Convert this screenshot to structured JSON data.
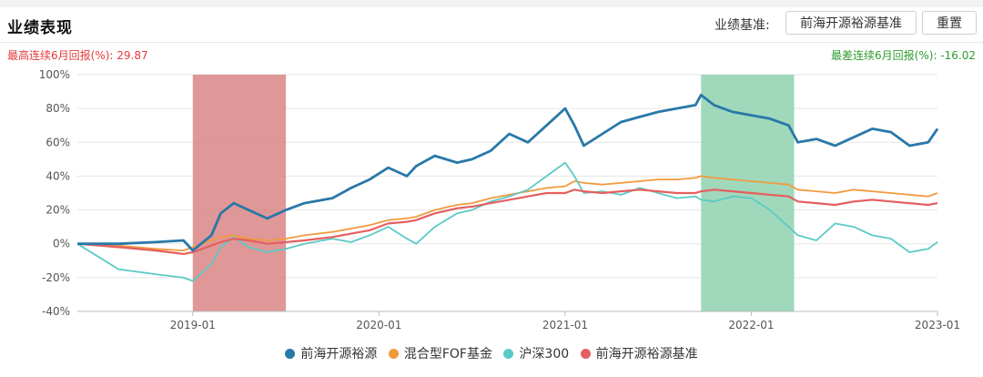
{
  "header": {
    "title": "业绩表现",
    "benchmark_label": "业绩基准:",
    "benchmark_button": "前海开源裕源基准",
    "reset_button": "重置"
  },
  "stats": {
    "max_label": "最高连续6月回报(%):  29.87",
    "min_label": "最差连续6月回报(%):  -16.02",
    "max_color": "#e4393c",
    "min_color": "#2e9b2e"
  },
  "chart_data": {
    "type": "line",
    "x_ticks": [
      "2019-01",
      "2020-01",
      "2021-01",
      "2022-01",
      "2023-01"
    ],
    "y_ticks": [
      "100%",
      "80%",
      "60%",
      "40%",
      "20%",
      "0%",
      "-20%",
      "-40%"
    ],
    "ylim": [
      -40,
      100
    ],
    "xlim": [
      2018.38,
      2023.0
    ],
    "grid": true,
    "legend_position": "bottom",
    "highlights": [
      {
        "name": "best_6m",
        "start": 2019.0,
        "end": 2019.5,
        "color": "#d98585"
      },
      {
        "name": "worst_6m",
        "start": 2021.73,
        "end": 2022.23,
        "color": "#8fd1b0"
      }
    ],
    "x": [
      2018.38,
      2018.6,
      2018.8,
      2018.95,
      2019.0,
      2019.1,
      2019.15,
      2019.22,
      2019.3,
      2019.4,
      2019.5,
      2019.6,
      2019.75,
      2019.85,
      2019.95,
      2020.05,
      2020.15,
      2020.2,
      2020.3,
      2020.42,
      2020.5,
      2020.6,
      2020.7,
      2020.8,
      2020.9,
      2021.0,
      2021.05,
      2021.1,
      2021.2,
      2021.3,
      2021.4,
      2021.5,
      2021.6,
      2021.7,
      2021.73,
      2021.8,
      2021.9,
      2022.0,
      2022.1,
      2022.2,
      2022.25,
      2022.35,
      2022.45,
      2022.55,
      2022.65,
      2022.75,
      2022.85,
      2022.95,
      2023.0
    ],
    "series": [
      {
        "name": "前海开源裕源",
        "color": "#2878a8",
        "width": 2.8,
        "values": [
          0,
          0,
          1,
          2,
          -4,
          5,
          18,
          24,
          20,
          15,
          20,
          24,
          27,
          33,
          38,
          45,
          40,
          46,
          52,
          48,
          50,
          55,
          65,
          60,
          70,
          80,
          70,
          58,
          65,
          72,
          75,
          78,
          80,
          82,
          88,
          82,
          78,
          76,
          74,
          70,
          60,
          62,
          58,
          63,
          68,
          66,
          58,
          60,
          68
        ]
      },
      {
        "name": "混合型FOF基金",
        "color": "#f19a3e",
        "width": 1.8,
        "values": [
          0,
          -1,
          -3,
          -4,
          -2,
          2,
          4,
          5,
          3,
          2,
          3,
          5,
          7,
          9,
          11,
          14,
          15,
          16,
          20,
          23,
          24,
          27,
          29,
          31,
          33,
          34,
          37,
          36,
          35,
          36,
          37,
          38,
          38,
          39,
          40,
          39,
          38,
          37,
          36,
          35,
          32,
          31,
          30,
          32,
          31,
          30,
          29,
          28,
          30
        ]
      },
      {
        "name": "沪深300",
        "color": "#5ccac6",
        "width": 1.8,
        "values": [
          0,
          -15,
          -18,
          -20,
          -22,
          -12,
          -2,
          4,
          -2,
          -5,
          -3,
          0,
          3,
          1,
          5,
          10,
          3,
          0,
          10,
          18,
          20,
          25,
          28,
          32,
          40,
          48,
          40,
          30,
          31,
          29,
          33,
          30,
          27,
          28,
          26,
          25,
          28,
          27,
          20,
          10,
          5,
          2,
          12,
          10,
          5,
          3,
          -5,
          -3,
          1
        ]
      },
      {
        "name": "前海开源裕源基准",
        "color": "#e55f5f",
        "width": 2.2,
        "values": [
          0,
          -2,
          -4,
          -6,
          -5,
          -1,
          1,
          3,
          2,
          0,
          1,
          2,
          4,
          6,
          8,
          12,
          13,
          14,
          18,
          21,
          22,
          24,
          26,
          28,
          30,
          30,
          32,
          31,
          30,
          31,
          32,
          31,
          30,
          30,
          31,
          32,
          31,
          30,
          29,
          28,
          25,
          24,
          23,
          25,
          26,
          25,
          24,
          23,
          24
        ]
      }
    ]
  }
}
